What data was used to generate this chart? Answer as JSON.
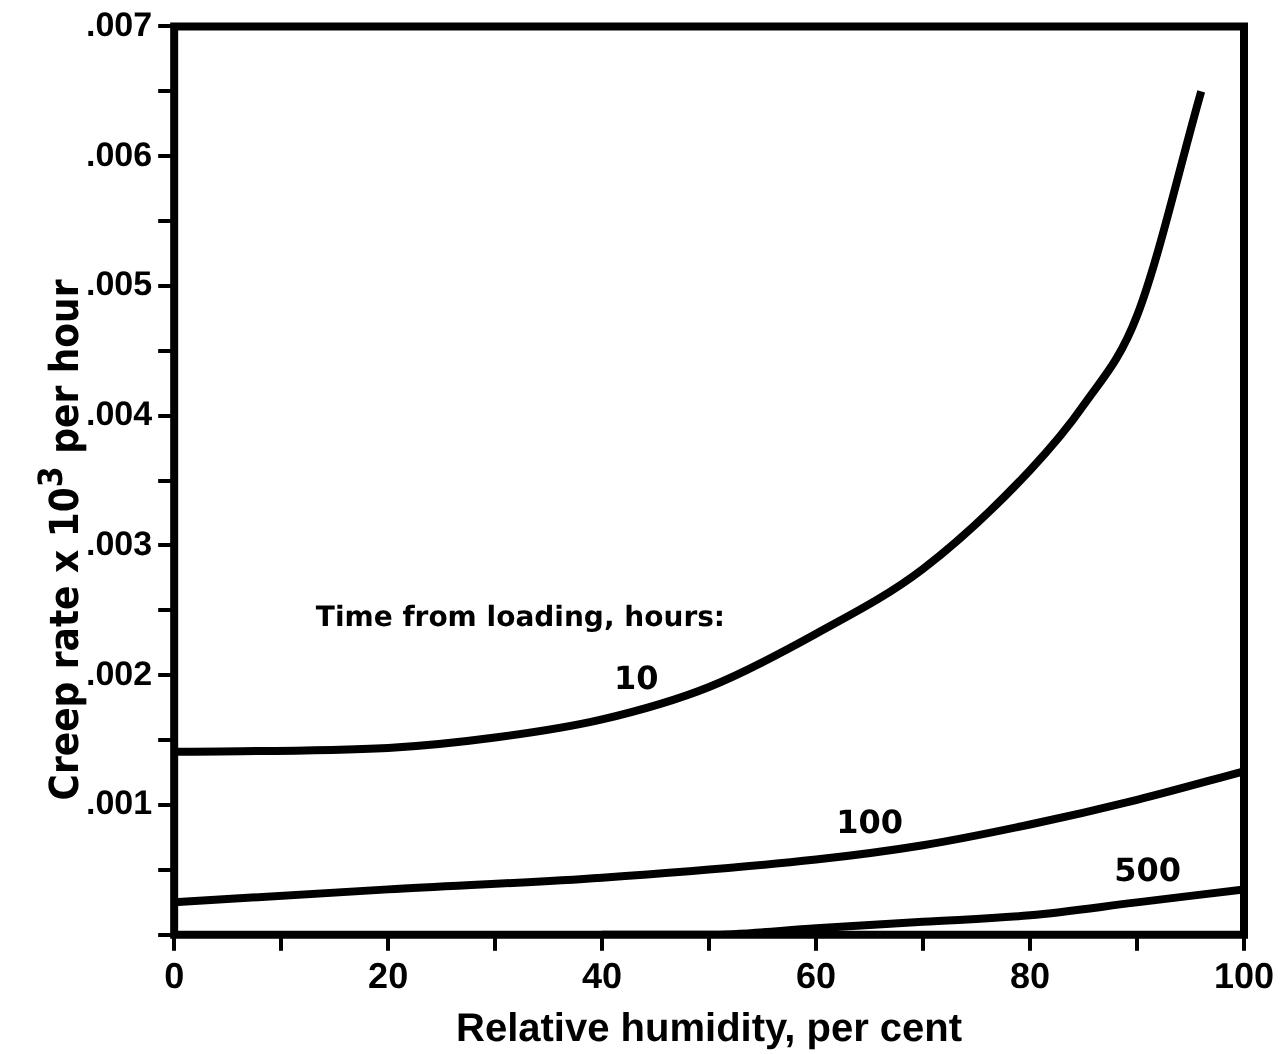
{
  "chart_data": {
    "type": "line",
    "xlabel": "Relative humidity, per cent",
    "ylabel": "Creep rate x 10$^{3}$ per hour",
    "xlim": [
      0,
      100
    ],
    "xticks": [
      0,
      {
        "value": 10,
        "label": null
      },
      20,
      {
        "value": 30,
        "label": null
      },
      40,
      {
        "value": 50,
        "label": null
      },
      60,
      {
        "value": 70,
        "label": null
      },
      80,
      {
        "value": 90,
        "label": null
      },
      100
    ],
    "ylim": [
      0,
      0.007
    ],
    "yticks": [
      {
        "value": 0,
        "label": null
      },
      {
        "value": 0.0005,
        "label": null
      },
      {
        "value": 0.001,
        "label": ".001"
      },
      {
        "value": 0.0015,
        "label": null
      },
      {
        "value": 0.002,
        "label": ".002"
      },
      {
        "value": 0.0025,
        "label": null
      },
      {
        "value": 0.003,
        "label": ".003"
      },
      {
        "value": 0.0035,
        "label": null
      },
      {
        "value": 0.004,
        "label": ".004"
      },
      {
        "value": 0.0045,
        "label": null
      },
      {
        "value": 0.005,
        "label": ".005"
      },
      {
        "value": 0.0055,
        "label": null
      },
      {
        "value": 0.006,
        "label": ".006"
      },
      {
        "value": 0.0065,
        "label": null
      },
      {
        "value": 0.007,
        "label": ".007"
      }
    ],
    "grid": false,
    "legend": false,
    "marker": "none",
    "line_style": "solid",
    "series": [
      {
        "name": "10",
        "color": "#000000",
        "x": [
          0,
          20,
          30,
          40,
          50,
          60,
          70,
          80,
          85,
          90,
          96
        ],
        "values": [
          0.00141,
          0.00144,
          0.00152,
          0.00166,
          0.00191,
          0.00232,
          0.00282,
          0.00358,
          0.00408,
          0.00477,
          0.0065
        ]
      },
      {
        "name": "100",
        "color": "#000000",
        "x": [
          0,
          20,
          40,
          60,
          70,
          80,
          90,
          100
        ],
        "values": [
          0.00025,
          0.00035,
          0.00044,
          0.00058,
          0.00069,
          0.00085,
          0.00104,
          0.00126
        ]
      },
      {
        "name": "500",
        "color": "#000000",
        "x": [
          40,
          50,
          60,
          70,
          80,
          90,
          100
        ],
        "values": [
          0,
          0,
          5e-05,
          0.0001,
          0.00015,
          0.00025,
          0.00035
        ]
      }
    ],
    "annotations": [
      "Time from loading, hours:"
    ]
  }
}
